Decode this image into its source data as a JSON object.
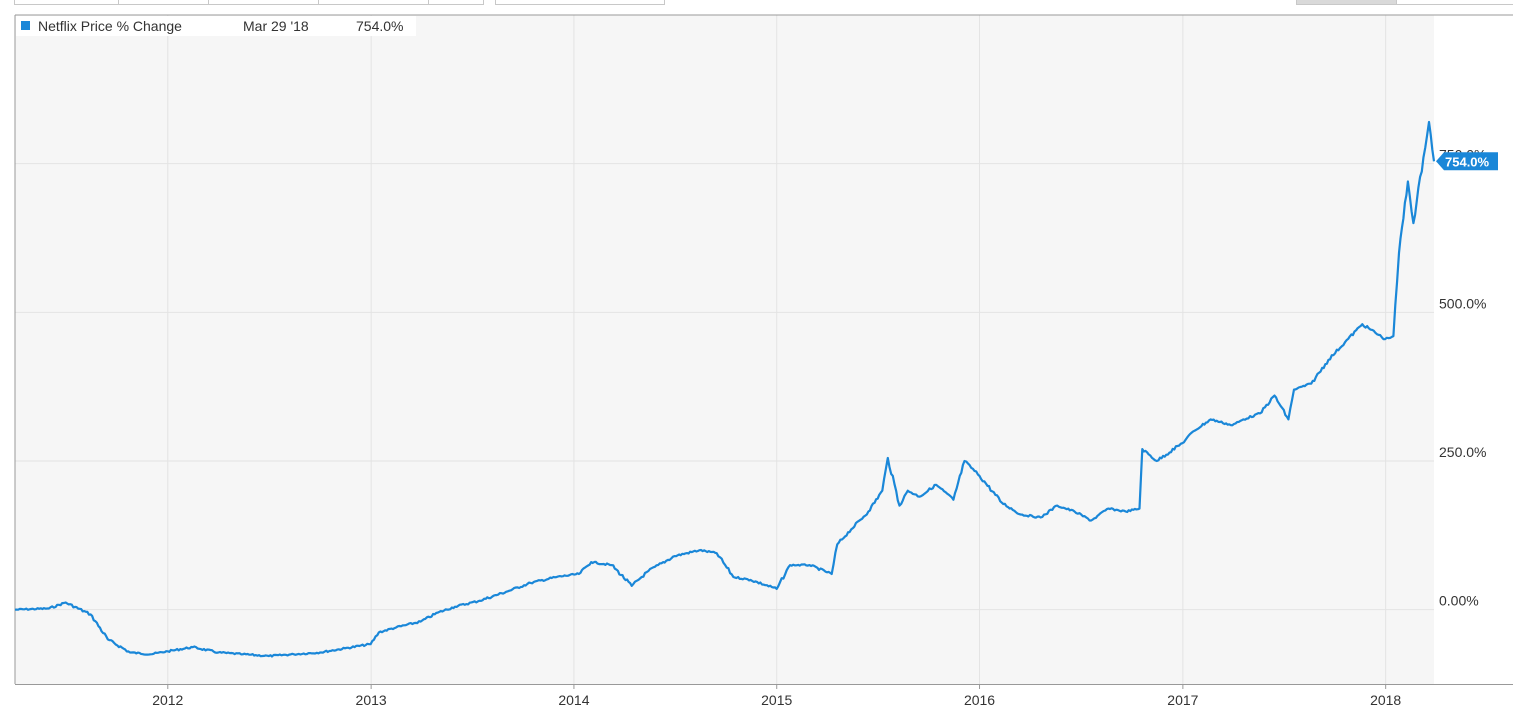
{
  "toolbar": {
    "buttons": [
      "",
      "",
      "",
      "",
      "",
      "",
      ""
    ]
  },
  "colors": {
    "line": "#1a87d8",
    "plot_bg": "#f6f6f6",
    "grid": "#e3e3e3",
    "label_bg": "#1a87d8"
  },
  "legend": {
    "series": "Netflix Price % Change",
    "date": "Mar 29 '18",
    "value": "754.0%"
  },
  "last_value_label": "754.0%",
  "chart_data": {
    "type": "line",
    "x": [
      "2011-04-01",
      "2011-06-01",
      "2011-07-01",
      "2011-08-15",
      "2011-09-15",
      "2011-10-25",
      "2011-12-01",
      "2012-01-01",
      "2012-02-15",
      "2012-04-01",
      "2012-05-15",
      "2012-07-01",
      "2012-08-15",
      "2012-10-01",
      "2012-11-15",
      "2012-12-31",
      "2013-01-15",
      "2013-02-15",
      "2013-03-31",
      "2013-05-01",
      "2013-06-01",
      "2013-07-15",
      "2013-09-01",
      "2013-10-15",
      "2013-12-01",
      "2014-01-10",
      "2014-02-01",
      "2014-03-10",
      "2014-04-15",
      "2014-05-15",
      "2014-07-01",
      "2014-08-15",
      "2014-09-15",
      "2014-10-15",
      "2014-11-15",
      "2015-01-01",
      "2015-01-25",
      "2015-03-01",
      "2015-04-10",
      "2015-04-20",
      "2015-05-15",
      "2015-06-15",
      "2015-07-10",
      "2015-07-20",
      "2015-08-10",
      "2015-08-25",
      "2015-09-15",
      "2015-10-15",
      "2015-11-15",
      "2015-12-05",
      "2016-01-01",
      "2016-02-10",
      "2016-03-15",
      "2016-04-20",
      "2016-05-20",
      "2016-06-20",
      "2016-07-20",
      "2016-08-20",
      "2016-09-20",
      "2016-10-15",
      "2016-10-20",
      "2016-11-15",
      "2016-12-31",
      "2017-01-20",
      "2017-02-20",
      "2017-03-31",
      "2017-04-20",
      "2017-05-20",
      "2017-06-15",
      "2017-07-10",
      "2017-07-20",
      "2017-08-20",
      "2017-09-20",
      "2017-10-20",
      "2017-11-20",
      "2017-12-31",
      "2018-01-15",
      "2018-01-25",
      "2018-02-10",
      "2018-02-20",
      "2018-03-10",
      "2018-03-20",
      "2018-03-29"
    ],
    "y": [
      0,
      2,
      12,
      -8,
      -50,
      -72,
      -75,
      -70,
      -63,
      -72,
      -75,
      -78,
      -75,
      -72,
      -65,
      -58,
      -38,
      -30,
      -20,
      -5,
      5,
      15,
      30,
      45,
      55,
      60,
      80,
      75,
      40,
      65,
      90,
      100,
      95,
      55,
      50,
      35,
      75,
      75,
      60,
      110,
      135,
      165,
      200,
      255,
      175,
      200,
      190,
      210,
      185,
      250,
      225,
      180,
      160,
      155,
      175,
      165,
      150,
      170,
      165,
      170,
      270,
      250,
      280,
      300,
      320,
      310,
      320,
      330,
      360,
      320,
      370,
      380,
      420,
      450,
      480,
      455,
      460,
      600,
      720,
      650,
      760,
      820,
      754
    ],
    "series": [
      {
        "name": "Netflix Price % Change"
      }
    ],
    "y_ticks": [
      "0.00%",
      "250.0%",
      "500.0%",
      "750.0%"
    ],
    "x_ticks": [
      "2012",
      "2013",
      "2014",
      "2015",
      "2016",
      "2017",
      "2018"
    ],
    "ylim": [
      -125,
      1000
    ],
    "xlim": [
      "2011-04-01",
      "2018-03-29"
    ],
    "grid": true,
    "legend_position": "top-left",
    "title": "",
    "xlabel": "",
    "ylabel": ""
  }
}
